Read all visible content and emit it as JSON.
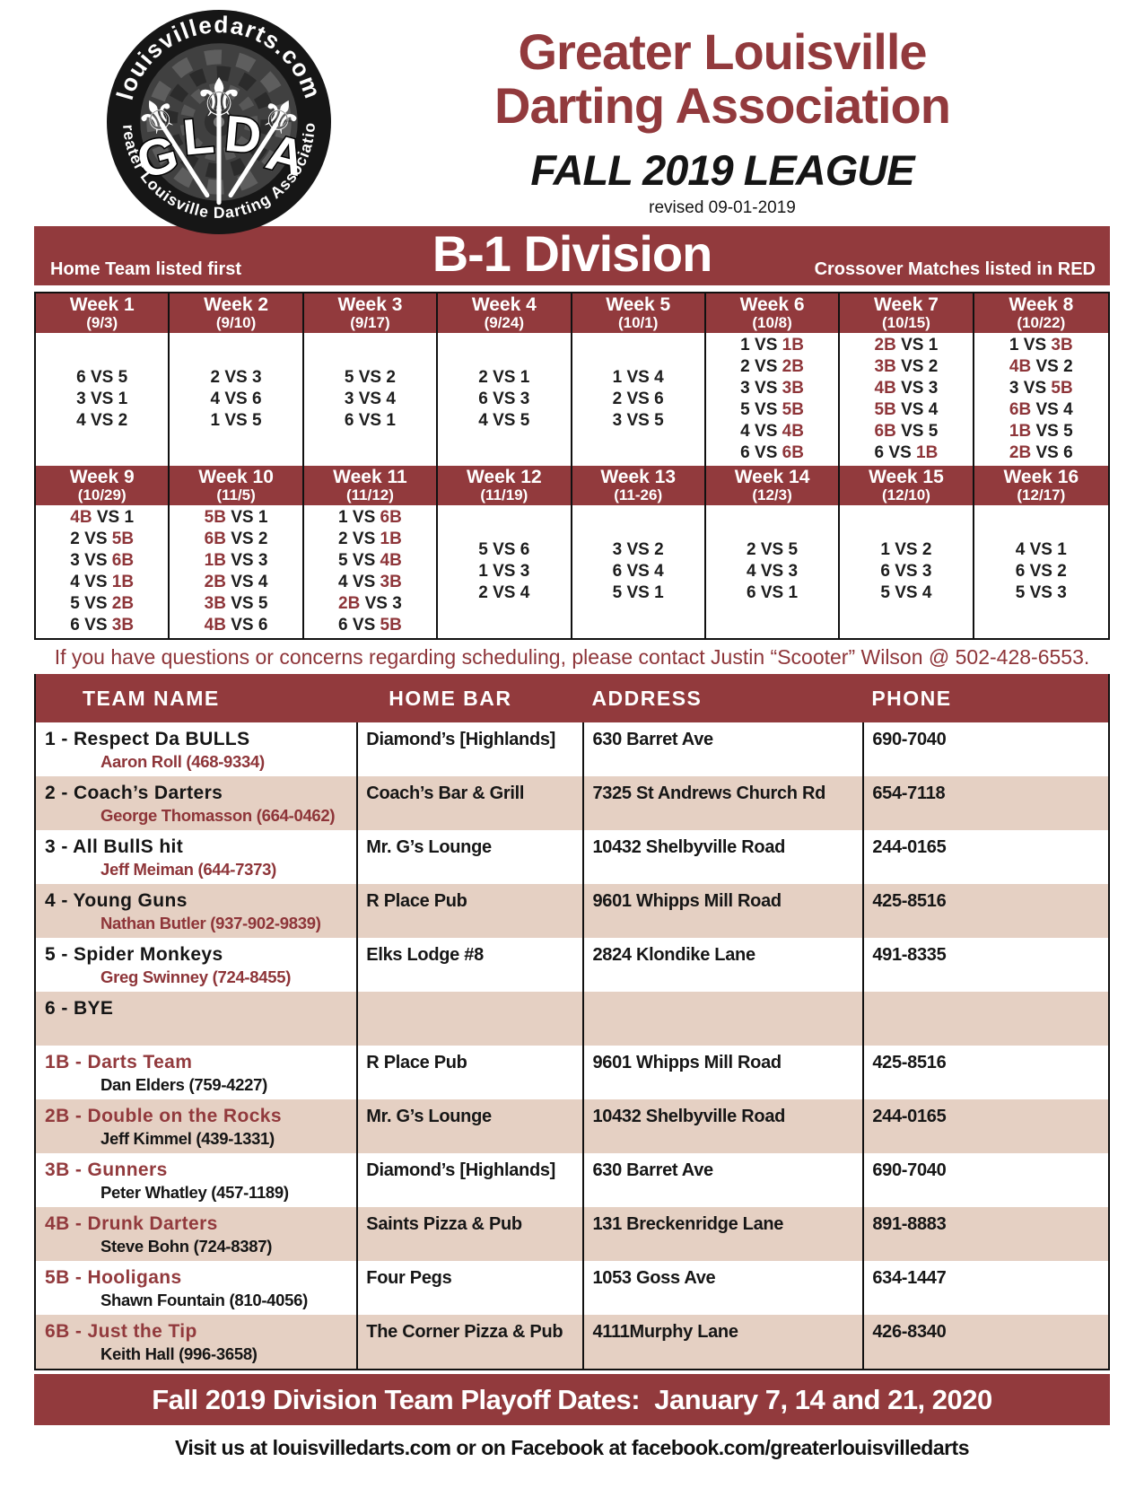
{
  "colors": {
    "maroon": "#923a3d",
    "redtext": "#8e3539",
    "tan": "#e5d0c3",
    "ink": "#1a1a1a"
  },
  "logo": {
    "top_arc": "louisvilledarts.com",
    "bottom_arc": "Greater Louisville Darting Association",
    "letters": [
      "G",
      "L",
      "D",
      "A"
    ]
  },
  "icons": {
    "fleur_de_lis": "⚜"
  },
  "header": {
    "title_line1": "Greater Louisville",
    "title_line2": "Darting Association",
    "season": "FALL 2019 LEAGUE",
    "revised": "revised 09-01-2019"
  },
  "division": {
    "left_note": "Home Team listed first",
    "title": "B-1 Division",
    "right_note": "Crossover Matches listed in RED"
  },
  "schedule": {
    "weeks": [
      {
        "label": "Week 1",
        "date": "(9/3)",
        "matches": [
          "6 VS 5",
          "3 VS 1",
          "4 VS 2"
        ]
      },
      {
        "label": "Week 2",
        "date": "(9/10)",
        "matches": [
          "2 VS 3",
          "4 VS 6",
          "1 VS 5"
        ]
      },
      {
        "label": "Week 3",
        "date": "(9/17)",
        "matches": [
          "5 VS 2",
          "3 VS 4",
          "6 VS 1"
        ]
      },
      {
        "label": "Week 4",
        "date": "(9/24)",
        "matches": [
          "2 VS 1",
          "6 VS 3",
          "4 VS 5"
        ]
      },
      {
        "label": "Week 5",
        "date": "(10/1)",
        "matches": [
          "1 VS 4",
          "2 VS 6",
          "3 VS 5"
        ]
      },
      {
        "label": "Week 6",
        "date": "(10/8)",
        "matches": [
          "1 VS 1B",
          "2 VS 2B",
          "3 VS 3B",
          "5 VS 5B",
          "4 VS 4B",
          "6 VS 6B"
        ]
      },
      {
        "label": "Week 7",
        "date": "(10/15)",
        "matches": [
          "2B VS 1",
          "3B VS 2",
          "4B VS 3",
          "5B VS 4",
          "6B VS 5",
          "6 VS 1B"
        ]
      },
      {
        "label": "Week 8",
        "date": "(10/22)",
        "matches": [
          "1 VS 3B",
          "4B VS 2",
          "3 VS 5B",
          "6B VS 4",
          "1B VS 5",
          "2B VS 6"
        ]
      },
      {
        "label": "Week 9",
        "date": "(10/29)",
        "matches": [
          "4B VS 1",
          "2 VS 5B",
          "3 VS 6B",
          "4 VS 1B",
          "5 VS 2B",
          "6 VS 3B"
        ]
      },
      {
        "label": "Week 10",
        "date": "(11/5)",
        "matches": [
          "5B VS 1",
          "6B VS 2",
          "1B VS 3",
          "2B VS 4",
          "3B VS 5",
          "4B VS 6"
        ]
      },
      {
        "label": "Week 11",
        "date": "(11/12)",
        "matches": [
          "1 VS 6B",
          "2 VS 1B",
          "5 VS 4B",
          "4 VS 3B",
          "2B VS 3",
          "6 VS 5B"
        ]
      },
      {
        "label": "Week 12",
        "date": "(11/19)",
        "matches": [
          "5 VS 6",
          "1 VS 3",
          "2 VS 4"
        ]
      },
      {
        "label": "Week 13",
        "date": "(11-26)",
        "matches": [
          "3 VS 2",
          "6 VS 4",
          "5 VS 1"
        ]
      },
      {
        "label": "Week 14",
        "date": "(12/3)",
        "matches": [
          "2 VS 5",
          "4 VS 3",
          "6 VS 1"
        ]
      },
      {
        "label": "Week 15",
        "date": "(12/10)",
        "matches": [
          "1 VS 2",
          "6 VS 3",
          "5 VS 4"
        ]
      },
      {
        "label": "Week 16",
        "date": "(12/17)",
        "matches": [
          "4 VS 1",
          "6 VS 2",
          "5 VS 3"
        ]
      }
    ]
  },
  "contact_note": "If you have questions or concerns regarding scheduling, please contact Justin “Scooter” Wilson @ 502-428-6553.",
  "team_table": {
    "headers": [
      "TEAM NAME",
      "HOME BAR",
      "ADDRESS",
      "PHONE"
    ],
    "rows": [
      {
        "num": "1",
        "name": "Respect Da BULLS",
        "captain": "Aaron Roll (468-9334)",
        "bar": "Diamond’s [Highlands]",
        "address": "630 Barret Ave",
        "phone": "690-7040"
      },
      {
        "num": "2",
        "name": "Coach’s Darters",
        "captain": "George Thomasson (664-0462)",
        "bar": "Coach’s Bar & Grill",
        "address": "7325 St Andrews Church Rd",
        "phone": "654-7118"
      },
      {
        "num": "3",
        "name": "All BullS hit",
        "captain": "Jeff Meiman (644-7373)",
        "bar": "Mr. G’s Lounge",
        "address": "10432 Shelbyville Road",
        "phone": "244-0165"
      },
      {
        "num": "4",
        "name": "Young Guns",
        "captain": "Nathan Butler (937-902-9839)",
        "bar": "R Place Pub",
        "address": "9601 Whipps Mill Road",
        "phone": "425-8516"
      },
      {
        "num": "5",
        "name": "Spider Monkeys",
        "captain": "Greg Swinney (724-8455)",
        "bar": "Elks Lodge #8",
        "address": "2824 Klondike Lane",
        "phone": "491-8335"
      },
      {
        "num": "6",
        "name": "BYE",
        "captain": "",
        "bar": "",
        "address": "",
        "phone": ""
      },
      {
        "num": "1B",
        "name": "Darts Team",
        "captain": "Dan Elders (759-4227)",
        "bar": "R Place Pub",
        "address": "9601 Whipps Mill Road",
        "phone": "425-8516"
      },
      {
        "num": "2B",
        "name": "Double on the Rocks",
        "captain": "Jeff Kimmel (439-1331)",
        "bar": "Mr. G’s Lounge",
        "address": "10432 Shelbyville Road",
        "phone": "244-0165"
      },
      {
        "num": "3B",
        "name": "Gunners",
        "captain": "Peter Whatley (457-1189)",
        "bar": "Diamond’s [Highlands]",
        "address": "630 Barret Ave",
        "phone": "690-7040"
      },
      {
        "num": "4B",
        "name": "Drunk Darters",
        "captain": "Steve Bohn (724-8387)",
        "bar": "Saints Pizza & Pub",
        "address": "131 Breckenridge Lane",
        "phone": "891-8883"
      },
      {
        "num": "5B",
        "name": "Hooligans",
        "captain": "Shawn Fountain (810-4056)",
        "bar": "Four Pegs",
        "address": "1053 Goss Ave",
        "phone": "634-1447"
      },
      {
        "num": "6B",
        "name": "Just the Tip",
        "captain": "Keith Hall (996-3658)",
        "bar": "The Corner Pizza & Pub",
        "address": "4111Murphy Lane",
        "phone": "426-8340"
      }
    ]
  },
  "footer": {
    "playoff_line": "Fall 2019 Division Team Playoff Dates:  January 7, 14 and 21, 2020",
    "visit_line": "Visit us at louisvilledarts.com or on Facebook at facebook.com/greaterlouisvilledarts"
  }
}
